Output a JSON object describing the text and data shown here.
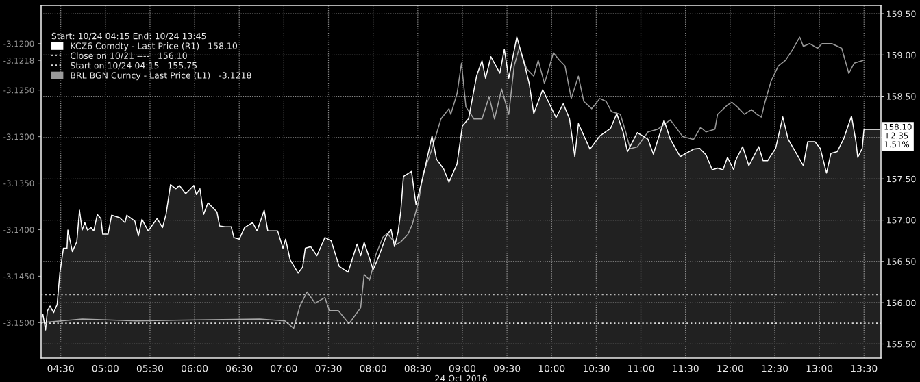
{
  "chart_data": {
    "type": "area",
    "xlabel": "24 Oct 2016",
    "legend_title": "Start: 10/24 04:15 End: 10/24 13:45",
    "legend": "top left",
    "grid": true,
    "xlim": [
      4.28,
      13.69
    ],
    "xticks": [
      {
        "value": 4.5,
        "label": "04:30"
      },
      {
        "value": 5.0,
        "label": "05:00"
      },
      {
        "value": 5.5,
        "label": "05:30"
      },
      {
        "value": 6.0,
        "label": "06:00"
      },
      {
        "value": 6.5,
        "label": "06:30"
      },
      {
        "value": 7.0,
        "label": "07:00"
      },
      {
        "value": 7.5,
        "label": "07:30"
      },
      {
        "value": 8.0,
        "label": "08:00"
      },
      {
        "value": 8.5,
        "label": "08:30"
      },
      {
        "value": 9.0,
        "label": "09:00"
      },
      {
        "value": 9.5,
        "label": "09:30"
      },
      {
        "value": 10.0,
        "label": "10:00"
      },
      {
        "value": 10.5,
        "label": "10:30"
      },
      {
        "value": 11.0,
        "label": "11:00"
      },
      {
        "value": 11.5,
        "label": "11:30"
      },
      {
        "value": 12.0,
        "label": "12:00"
      },
      {
        "value": 12.5,
        "label": "12:30"
      },
      {
        "value": 13.0,
        "label": "13:00"
      },
      {
        "value": 13.5,
        "label": "13:30"
      }
    ],
    "ylim": [
      -3.1538,
      -3.1159
    ],
    "yticks": [
      {
        "value": -3.12,
        "label": "-3.1200"
      },
      {
        "value": -3.1218,
        "label": "-3.1218"
      },
      {
        "value": -3.125,
        "label": "-3.1250"
      },
      {
        "value": -3.13,
        "label": "-3.1300"
      },
      {
        "value": -3.135,
        "label": "-3.1350"
      },
      {
        "value": -3.14,
        "label": "-3.1400"
      },
      {
        "value": -3.145,
        "label": "-3.1450"
      },
      {
        "value": -3.15,
        "label": "-3.1500"
      }
    ],
    "y2lim": [
      155.33,
      159.6
    ],
    "y2ticks": [
      {
        "value": 155.5,
        "label": "155.50"
      },
      {
        "value": 156.0,
        "label": "156.00"
      },
      {
        "value": 156.5,
        "label": "156.50"
      },
      {
        "value": 157.0,
        "label": "157.00"
      },
      {
        "value": 157.5,
        "label": "157.50"
      },
      {
        "value": 158.0,
        "label": null
      },
      {
        "value": 158.5,
        "label": "158.50"
      },
      {
        "value": 159.0,
        "label": "159.00"
      },
      {
        "value": 159.5,
        "label": "159.50"
      }
    ],
    "ref_lines": [
      {
        "axis": "y2",
        "value": 156.1,
        "label": "Close on 10/21 ----   156.10",
        "color": "#bbbbbb",
        "line_style": "dotted"
      },
      {
        "axis": "y2",
        "value": 155.75,
        "label": "Start on 10/24 04:15   155.75",
        "color": "#dddddd",
        "line_style": "dotted"
      }
    ],
    "annotations": [
      "158.10\n+2.35\n1.51%"
    ],
    "series": [
      {
        "name": "KCZ6 Comdty - Last Price (R1)   158.10",
        "axis": "y2",
        "color": "#ffffff",
        "x": [
          4.29,
          4.3,
          4.33,
          4.35,
          4.38,
          4.42,
          4.46,
          4.49,
          4.53,
          4.57,
          4.58,
          4.63,
          4.68,
          4.71,
          4.74,
          4.77,
          4.8,
          4.84,
          4.87,
          4.91,
          4.95,
          4.97,
          5.03,
          5.07,
          5.16,
          5.22,
          5.24,
          5.33,
          5.37,
          5.41,
          5.45,
          5.48,
          5.58,
          5.64,
          5.68,
          5.73,
          5.79,
          5.83,
          5.9,
          5.99,
          6.02,
          6.06,
          6.1,
          6.15,
          6.25,
          6.28,
          6.34,
          6.41,
          6.44,
          6.5,
          6.56,
          6.65,
          6.7,
          6.78,
          6.82,
          6.93,
          6.99,
          7.02,
          7.07,
          7.16,
          7.21,
          7.24,
          7.3,
          7.37,
          7.46,
          7.53,
          7.62,
          7.72,
          7.82,
          7.86,
          7.9,
          7.95,
          8.0,
          8.06,
          8.14,
          8.2,
          8.24,
          8.28,
          8.31,
          8.34,
          8.43,
          8.48,
          8.56,
          8.66,
          8.71,
          8.79,
          8.85,
          8.94,
          9.0,
          9.07,
          9.16,
          9.22,
          9.26,
          9.32,
          9.42,
          9.47,
          9.52,
          9.61,
          9.7,
          9.75,
          9.8,
          9.9,
          10.05,
          10.13,
          10.2,
          10.26,
          10.3,
          10.43,
          10.54,
          10.66,
          10.73,
          10.8,
          10.85,
          10.96,
          11.08,
          11.14,
          11.26,
          11.33,
          11.44,
          11.59,
          11.66,
          11.73,
          11.8,
          11.86,
          11.92,
          11.97,
          12.04,
          12.06,
          12.14,
          12.21,
          12.32,
          12.37,
          12.42,
          12.51,
          12.59,
          12.65,
          12.73,
          12.82,
          12.87,
          12.95,
          13.01,
          13.08,
          13.13,
          13.2,
          13.27,
          13.36,
          13.41,
          13.43,
          13.48,
          13.5,
          13.68
        ],
        "values": [
          155.83,
          155.86,
          155.67,
          155.9,
          155.96,
          155.88,
          155.98,
          156.36,
          156.66,
          156.66,
          156.88,
          156.62,
          156.74,
          157.12,
          156.88,
          156.97,
          156.88,
          156.91,
          156.87,
          157.07,
          157.02,
          156.83,
          156.83,
          157.06,
          157.03,
          156.97,
          157.06,
          156.99,
          156.81,
          157.01,
          156.93,
          156.87,
          157.02,
          156.91,
          157.07,
          157.43,
          157.38,
          157.42,
          157.32,
          157.42,
          157.31,
          157.38,
          157.07,
          157.21,
          157.1,
          156.93,
          156.92,
          156.92,
          156.79,
          156.77,
          156.91,
          156.97,
          156.87,
          157.12,
          156.87,
          156.87,
          156.66,
          156.77,
          156.52,
          156.36,
          156.43,
          156.66,
          156.68,
          156.57,
          156.79,
          156.75,
          156.44,
          156.37,
          156.71,
          156.57,
          156.73,
          156.57,
          156.4,
          156.55,
          156.79,
          156.89,
          156.68,
          156.86,
          157.11,
          157.53,
          157.59,
          157.19,
          157.53,
          158.02,
          157.74,
          157.62,
          157.46,
          157.68,
          158.14,
          158.23,
          158.75,
          158.93,
          158.72,
          158.98,
          158.78,
          159.07,
          158.72,
          159.22,
          158.87,
          158.65,
          158.29,
          158.58,
          158.24,
          158.41,
          158.23,
          157.77,
          158.17,
          157.86,
          158.02,
          158.11,
          158.29,
          158.07,
          157.83,
          158.06,
          157.98,
          157.8,
          158.21,
          157.98,
          157.77,
          157.86,
          157.87,
          157.79,
          157.61,
          157.63,
          157.61,
          157.76,
          157.61,
          157.72,
          157.89,
          157.66,
          157.89,
          157.72,
          157.72,
          157.87,
          158.25,
          157.98,
          157.83,
          157.66,
          157.95,
          157.95,
          157.87,
          157.57,
          157.81,
          157.83,
          157.98,
          158.26,
          157.95,
          157.76,
          157.87,
          158.1,
          158.1
        ]
      },
      {
        "name": "BRL BGN Curncy - Last Price (L1)   -3.1218",
        "type": "line",
        "color": "#9a9a9a",
        "x": [
          4.29,
          4.74,
          5.35,
          6.04,
          6.73,
          7.01,
          7.11,
          7.18,
          7.26,
          7.35,
          7.46,
          7.51,
          7.61,
          7.73,
          7.86,
          7.9,
          7.96,
          8.0,
          8.03,
          8.11,
          8.16,
          8.26,
          8.31,
          8.39,
          8.44,
          8.51,
          8.56,
          8.65,
          8.76,
          8.85,
          8.87,
          8.94,
          8.99,
          9.04,
          9.13,
          9.22,
          9.3,
          9.36,
          9.44,
          9.52,
          9.58,
          9.64,
          9.72,
          9.8,
          9.85,
          9.92,
          10.02,
          10.09,
          10.15,
          10.22,
          10.3,
          10.36,
          10.45,
          10.54,
          10.61,
          10.67,
          10.77,
          10.83,
          10.88,
          10.96,
          11.08,
          11.19,
          11.33,
          11.47,
          11.59,
          11.67,
          11.73,
          11.83,
          11.86,
          11.97,
          12.02,
          12.08,
          12.16,
          12.24,
          12.3,
          12.35,
          12.39,
          12.46,
          12.54,
          12.62,
          12.69,
          12.78,
          12.82,
          12.89,
          12.98,
          13.03,
          13.14,
          13.25,
          13.33,
          13.39,
          13.49
        ],
        "values": [
          -3.15,
          -3.1496,
          -3.1498,
          -3.1497,
          -3.1496,
          -3.1498,
          -3.1506,
          -3.1482,
          -3.1467,
          -3.1479,
          -3.1473,
          -3.1487,
          -3.1487,
          -3.1501,
          -3.1484,
          -3.1448,
          -3.1454,
          -3.144,
          -3.1427,
          -3.1408,
          -3.1404,
          -3.1416,
          -3.1413,
          -3.1405,
          -3.1394,
          -3.137,
          -3.134,
          -3.1316,
          -3.1281,
          -3.127,
          -3.1276,
          -3.1254,
          -3.1221,
          -3.1268,
          -3.1281,
          -3.1281,
          -3.1257,
          -3.1281,
          -3.1249,
          -3.1276,
          -3.1224,
          -3.1204,
          -3.1227,
          -3.1235,
          -3.1218,
          -3.1243,
          -3.121,
          -3.1218,
          -3.1224,
          -3.1259,
          -3.1235,
          -3.1262,
          -3.127,
          -3.1259,
          -3.1262,
          -3.1273,
          -3.1276,
          -3.1295,
          -3.1313,
          -3.1311,
          -3.1295,
          -3.1292,
          -3.1282,
          -3.13,
          -3.1303,
          -3.129,
          -3.1295,
          -3.1292,
          -3.1276,
          -3.1266,
          -3.1263,
          -3.1268,
          -3.1276,
          -3.1271,
          -3.1276,
          -3.1279,
          -3.1263,
          -3.124,
          -3.1224,
          -3.1218,
          -3.1208,
          -3.1193,
          -3.1203,
          -3.12,
          -3.1205,
          -3.12,
          -3.12,
          -3.1205,
          -3.1232,
          -3.1221,
          -3.1218
        ]
      }
    ]
  }
}
